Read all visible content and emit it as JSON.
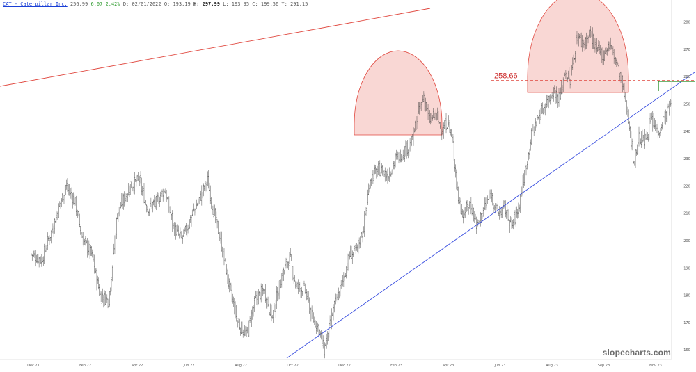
{
  "header": {
    "ticker_label": "CAT - Caterpillar Inc.",
    "last": "256.99",
    "change": "6.07 2.42%",
    "stats_a": "D: 02/01/2022  O: 193.19",
    "high_label": "H: 297.99",
    "stats_b": "L: 193.95  C: 199.56  Y: 291.15"
  },
  "watermark": "slopecharts.com",
  "chart_data": {
    "type": "ohlc",
    "title": "",
    "x_labels": [
      "Dec 21",
      "Feb 22",
      "Apr 22",
      "Jun 22",
      "Aug 22",
      "Oct 22",
      "Dec 22",
      "Feb 23",
      "Apr 23",
      "Jun 23",
      "Aug 23",
      "Sep 23",
      "Nov 23"
    ],
    "y_ticks": [
      160,
      170,
      180,
      190,
      200,
      210,
      220,
      230,
      240,
      250,
      260,
      270,
      280
    ],
    "ylim": [
      157,
      285
    ],
    "grid": false,
    "colors": {
      "bars": "#3a3a3a",
      "trend_up_red": "#e0473e",
      "trend_blue": "#3a4fe0",
      "dome_fill": "#f7c9c6",
      "dome_stroke": "#e0473e",
      "level_line": "#e0473e",
      "breakout_line": "#1e8a1e"
    },
    "price_path": [
      [
        0,
        195
      ],
      [
        12,
        193
      ],
      [
        25,
        205
      ],
      [
        40,
        220
      ],
      [
        50,
        215
      ],
      [
        60,
        200
      ],
      [
        70,
        195
      ],
      [
        80,
        180
      ],
      [
        90,
        178
      ],
      [
        100,
        210
      ],
      [
        115,
        220
      ],
      [
        125,
        222
      ],
      [
        135,
        212
      ],
      [
        145,
        214
      ],
      [
        155,
        219
      ],
      [
        165,
        205
      ],
      [
        175,
        200
      ],
      [
        185,
        208
      ],
      [
        195,
        215
      ],
      [
        205,
        222
      ],
      [
        212,
        210
      ],
      [
        220,
        200
      ],
      [
        230,
        183
      ],
      [
        240,
        170
      ],
      [
        250,
        165
      ],
      [
        260,
        178
      ],
      [
        270,
        182
      ],
      [
        280,
        172
      ],
      [
        290,
        186
      ],
      [
        300,
        194
      ],
      [
        308,
        183
      ],
      [
        318,
        182
      ],
      [
        326,
        172
      ],
      [
        334,
        168
      ],
      [
        340,
        160
      ],
      [
        345,
        166
      ],
      [
        352,
        176
      ],
      [
        360,
        183
      ],
      [
        370,
        195
      ],
      [
        378,
        196
      ],
      [
        386,
        205
      ],
      [
        394,
        223
      ],
      [
        404,
        226
      ],
      [
        414,
        224
      ],
      [
        424,
        230
      ],
      [
        434,
        233
      ],
      [
        442,
        236
      ],
      [
        450,
        247
      ],
      [
        456,
        253
      ],
      [
        462,
        244
      ],
      [
        470,
        246
      ],
      [
        478,
        240
      ],
      [
        484,
        244
      ],
      [
        490,
        235
      ],
      [
        496,
        215
      ],
      [
        502,
        210
      ],
      [
        510,
        214
      ],
      [
        518,
        205
      ],
      [
        526,
        212
      ],
      [
        534,
        217
      ],
      [
        542,
        210
      ],
      [
        550,
        212
      ],
      [
        558,
        205
      ],
      [
        566,
        212
      ],
      [
        574,
        226
      ],
      [
        582,
        240
      ],
      [
        590,
        246
      ],
      [
        598,
        250
      ],
      [
        606,
        255
      ],
      [
        614,
        252
      ],
      [
        620,
        262
      ],
      [
        626,
        258
      ],
      [
        634,
        275
      ],
      [
        642,
        272
      ],
      [
        650,
        276
      ],
      [
        656,
        270
      ],
      [
        664,
        268
      ],
      [
        672,
        272
      ],
      [
        680,
        265
      ],
      [
        688,
        255
      ],
      [
        694,
        245
      ],
      [
        700,
        228
      ],
      [
        706,
        238
      ],
      [
        712,
        236
      ],
      [
        720,
        244
      ],
      [
        728,
        240
      ],
      [
        736,
        245
      ],
      [
        744,
        250
      ]
    ],
    "annotations": {
      "level_label": "258.66",
      "level_value": 258.66
    }
  }
}
